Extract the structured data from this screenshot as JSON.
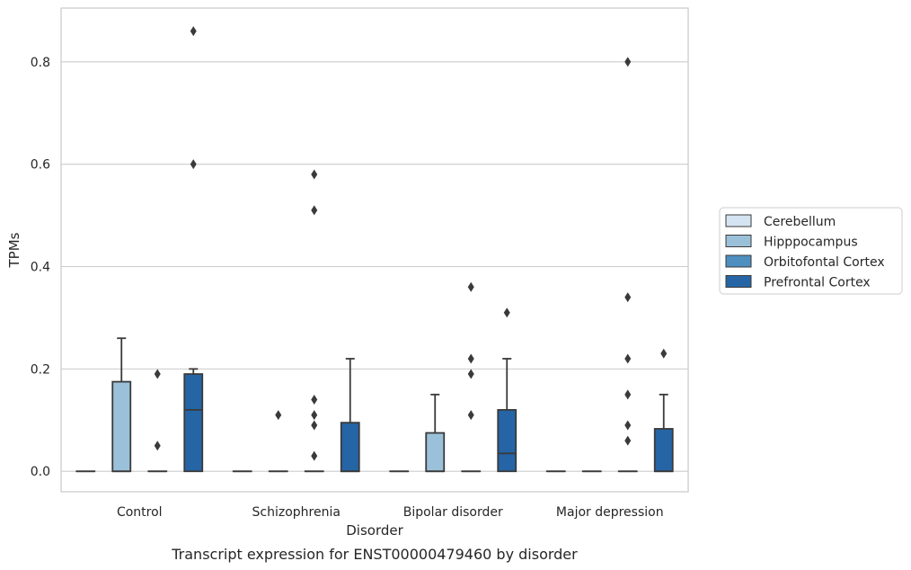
{
  "chart_data": {
    "type": "box",
    "caption": "Transcript expression for ENST00000479460 by disorder",
    "xlabel": "Disorder",
    "ylabel": "TPMs",
    "ylim": [
      -0.04,
      0.905
    ],
    "yticks": [
      "0.0",
      "0.2",
      "0.4",
      "0.6",
      "0.8"
    ],
    "ytick_values": [
      0.0,
      0.2,
      0.4,
      0.6,
      0.8
    ],
    "grid": "horizontal",
    "legend_position": "right",
    "categories": [
      "Control",
      "Schizophrenia",
      "Bipolar disorder",
      "Major depression"
    ],
    "series": [
      {
        "name": "Cerebellum",
        "color": "#d4e4f3",
        "boxes": [
          {
            "q1": 0,
            "median": 0,
            "q3": 0,
            "whislo": 0,
            "whishi": 0,
            "fliers": []
          },
          {
            "q1": 0,
            "median": 0,
            "q3": 0,
            "whislo": 0,
            "whishi": 0,
            "fliers": []
          },
          {
            "q1": 0,
            "median": 0,
            "q3": 0,
            "whislo": 0,
            "whishi": 0,
            "fliers": []
          },
          {
            "q1": 0,
            "median": 0,
            "q3": 0,
            "whislo": 0,
            "whishi": 0,
            "fliers": []
          }
        ]
      },
      {
        "name": "Hipppocampus",
        "color": "#9bc1da",
        "boxes": [
          {
            "q1": 0,
            "median": 0,
            "q3": 0.175,
            "whislo": 0,
            "whishi": 0.26,
            "fliers": []
          },
          {
            "q1": 0,
            "median": 0,
            "q3": 0,
            "whislo": 0,
            "whishi": 0,
            "fliers": [
              0.11
            ]
          },
          {
            "q1": 0,
            "median": 0,
            "q3": 0.075,
            "whislo": 0,
            "whishi": 0.15,
            "fliers": []
          },
          {
            "q1": 0,
            "median": 0,
            "q3": 0,
            "whislo": 0,
            "whishi": 0,
            "fliers": []
          }
        ]
      },
      {
        "name": "Orbitofontal Cortex",
        "color": "#4f8fbf",
        "boxes": [
          {
            "q1": 0,
            "median": 0,
            "q3": 0,
            "whislo": 0,
            "whishi": 0,
            "fliers": [
              0.05,
              0.19
            ]
          },
          {
            "q1": 0,
            "median": 0,
            "q3": 0,
            "whislo": 0,
            "whishi": 0,
            "fliers": [
              0.03,
              0.09,
              0.11,
              0.14,
              0.51,
              0.58
            ]
          },
          {
            "q1": 0,
            "median": 0,
            "q3": 0,
            "whislo": 0,
            "whishi": 0,
            "fliers": [
              0.11,
              0.19,
              0.22,
              0.36
            ]
          },
          {
            "q1": 0,
            "median": 0,
            "q3": 0,
            "whislo": 0,
            "whishi": 0,
            "fliers": [
              0.06,
              0.09,
              0.15,
              0.22,
              0.34,
              0.8
            ]
          }
        ]
      },
      {
        "name": "Prefrontal Cortex",
        "color": "#2565a5",
        "boxes": [
          {
            "q1": 0,
            "median": 0.12,
            "q3": 0.19,
            "whislo": 0,
            "whishi": 0.2,
            "fliers": [
              0.6,
              0.86
            ]
          },
          {
            "q1": 0,
            "median": 0,
            "q3": 0.095,
            "whislo": 0,
            "whishi": 0.22,
            "fliers": []
          },
          {
            "q1": 0,
            "median": 0.035,
            "q3": 0.12,
            "whislo": 0,
            "whishi": 0.22,
            "fliers": [
              0.31
            ]
          },
          {
            "q1": 0,
            "median": 0,
            "q3": 0.083,
            "whislo": 0,
            "whishi": 0.15,
            "fliers": [
              0.23
            ]
          }
        ]
      }
    ]
  }
}
